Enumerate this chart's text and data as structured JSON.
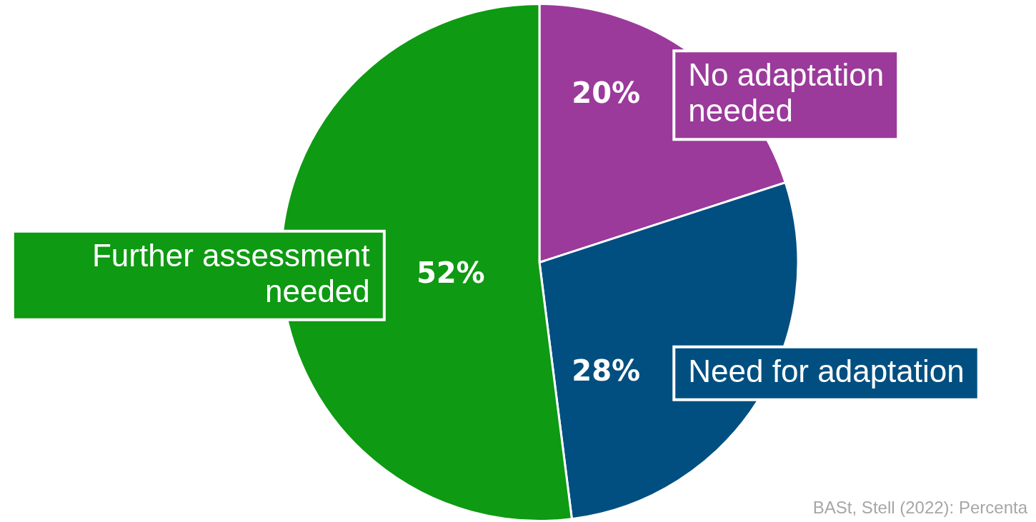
{
  "chart_data": {
    "type": "pie",
    "categories": [
      "No adaptation needed",
      "Need for adaptation",
      "Further assessment needed"
    ],
    "values": [
      20,
      28,
      52
    ],
    "value_labels": [
      "20%",
      "28%",
      "52%"
    ],
    "colors": [
      "#9b3a9b",
      "#004f80",
      "#0e9a12"
    ],
    "annotations": [
      "BASt, Stell (2022): Percenta"
    ]
  }
}
